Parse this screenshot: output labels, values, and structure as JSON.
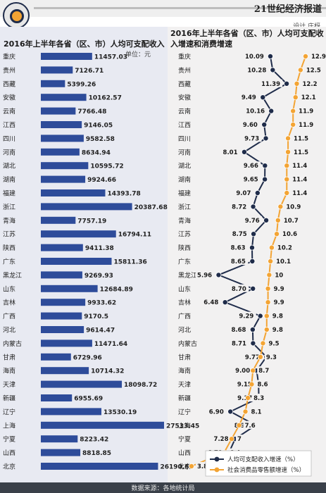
{
  "masthead": {
    "title": "21世纪经济报道",
    "credit": "设计 庄枒"
  },
  "footer": {
    "source": "数据来源：各地统计局"
  },
  "colors": {
    "bar": "#2e4c9a",
    "income_line": "#1f2c4a",
    "consumption_line": "#f3a434",
    "bar_panel": "#e8eaf2",
    "line_panel": "#f2f1f1"
  },
  "chart_data": [
    {
      "type": "bar",
      "title": "2016年上半年各省（区、市）人均可支配收入",
      "unit": "单位：元",
      "categories": [
        "重庆",
        "贵州",
        "西藏",
        "安徽",
        "云南",
        "江西",
        "四川",
        "河南",
        "湖北",
        "湖南",
        "福建",
        "浙江",
        "青海",
        "江苏",
        "陕西",
        "广东",
        "黑龙江",
        "山东",
        "吉林",
        "广西",
        "河北",
        "内蒙古",
        "甘肃",
        "海南",
        "天津",
        "新疆",
        "辽宁",
        "上海",
        "宁夏",
        "山西",
        "北京"
      ],
      "values": [
        11457.03,
        7126.71,
        5399.26,
        10162.57,
        7766.48,
        9146.05,
        9582.58,
        8634.94,
        10595.72,
        9924.66,
        14393.78,
        20387.68,
        7757.19,
        16794.11,
        9411.38,
        15811.36,
        9269.93,
        12684.89,
        9933.62,
        9170.5,
        9614.47,
        11471.64,
        6729.96,
        10714.32,
        18098.72,
        6955.69,
        13530.19,
        27533.45,
        8223.42,
        8818.85,
        26190.62
      ],
      "labels": [
        "11457.03",
        "7126.71",
        "5399.26",
        "10162.57",
        "7766.48",
        "9146.05",
        "9582.58",
        "8634.94",
        "10595.72",
        "9924.66",
        "14393.78",
        "20387.68",
        "7757.19",
        "16794.11",
        "9411.38",
        "15811.36",
        "9269.93",
        "12684.89",
        "9933.62",
        "9170.5",
        "9614.47",
        "11471.64",
        "6729.96",
        "10714.32",
        "18098.72",
        "6955.69",
        "13530.19",
        "27533.45",
        "8223.42",
        "8818.85",
        "26190.62"
      ]
    },
    {
      "type": "line",
      "title": "2016年上半年各省（区、市）人均可支配收入增速和消费增速",
      "categories": [
        "重庆",
        "贵州",
        "西藏",
        "安徽",
        "云南",
        "江西",
        "四川",
        "河南",
        "湖北",
        "湖南",
        "福建",
        "浙江",
        "青海",
        "江苏",
        "陕西",
        "广东",
        "黑龙江",
        "山东",
        "吉林",
        "广西",
        "河北",
        "内蒙古",
        "甘肃",
        "海南",
        "天津",
        "新疆",
        "辽宁",
        "上海",
        "宁夏",
        "山西",
        "北京"
      ],
      "series": [
        {
          "name": "人均可支配收入增速（%）",
          "values": [
            10.09,
            10.28,
            11.39,
            9.49,
            10.16,
            9.6,
            9.73,
            8.01,
            9.66,
            9.65,
            9.07,
            8.72,
            9.76,
            8.75,
            8.63,
            8.65,
            5.96,
            8.7,
            6.48,
            9.29,
            8.68,
            8.71,
            9.77,
            9.0,
            9.15,
            9.17,
            6.9,
            8.92,
            7.28,
            6.79,
            8.65
          ],
          "labels": [
            "10.09",
            "10.28",
            "11.39",
            "9.49",
            "10.16",
            "9.60",
            "9.73",
            "8.01",
            "9.66",
            "9.65",
            "9.07",
            "8.72",
            "9.76",
            "8.75",
            "8.63",
            "8.65",
            "5.96",
            "8.70",
            "6.48",
            "9.29",
            "8.68",
            "8.71",
            "9.77",
            "9.00",
            "9.15",
            "9.17",
            "6.90",
            "8.92",
            "7.28",
            "6.79",
            "8.65"
          ]
        },
        {
          "name": "社会消费品零售额增速（%）",
          "values": [
            12.9,
            12.5,
            12.2,
            12.1,
            11.9,
            11.9,
            11.5,
            11.5,
            11.4,
            11.4,
            11.4,
            10.9,
            10.7,
            10.6,
            10.2,
            10.1,
            10,
            9.9,
            9.9,
            9.8,
            9.8,
            9.5,
            9.3,
            8.7,
            8.6,
            8.3,
            8.1,
            7.6,
            7,
            6.4,
            3.8
          ],
          "labels": [
            "12.9",
            "12.5",
            "12.2",
            "12.1",
            "11.9",
            "11.9",
            "11.5",
            "11.5",
            "11.4",
            "11.4",
            "11.4",
            "10.9",
            "10.7",
            "10.6",
            "10.2",
            "10.1",
            "10",
            "9.9",
            "9.9",
            "9.8",
            "9.8",
            "9.5",
            "9.3",
            "8.7",
            "8.6",
            "8.3",
            "8.1",
            "7.6",
            "7",
            "6.4",
            "3.8"
          ]
        }
      ]
    }
  ]
}
